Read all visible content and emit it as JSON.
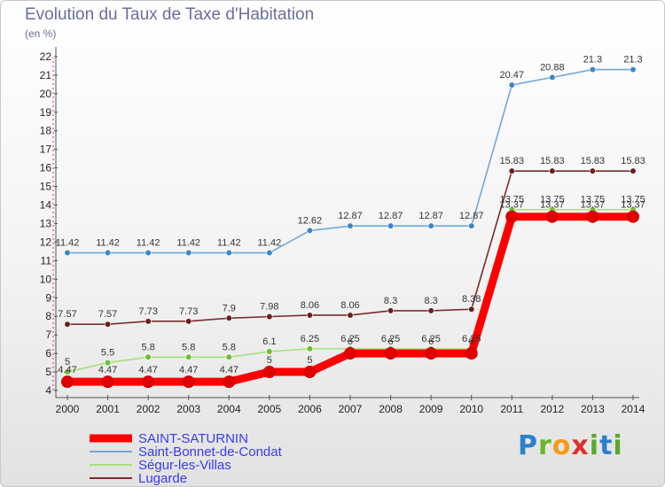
{
  "title": "Evolution du Taux de Taxe d'Habitation",
  "unit": "(en %)",
  "logo_text": "Proxiti",
  "chart_data": {
    "type": "line",
    "title": "Evolution du Taux de Taxe d'Habitation",
    "ylabel": "(en %)",
    "xlabel": "",
    "x": [
      2000,
      2001,
      2002,
      2003,
      2004,
      2005,
      2006,
      2007,
      2008,
      2009,
      2010,
      2011,
      2012,
      2013,
      2014
    ],
    "ylim": [
      4,
      22
    ],
    "yticks": [
      4,
      5,
      6,
      7,
      8,
      9,
      10,
      11,
      12,
      13,
      14,
      15,
      16,
      17,
      18,
      19,
      20,
      21,
      22
    ],
    "grid": false,
    "legend_position": "bottom-left",
    "series": [
      {
        "name": "Saint-Bonnet-de-Condat",
        "color": "#6fa8dc",
        "marker": "#3d85c6",
        "values": [
          11.42,
          11.42,
          11.42,
          11.42,
          11.42,
          11.42,
          12.62,
          12.87,
          12.87,
          12.87,
          12.87,
          20.47,
          20.88,
          21.3,
          21.3
        ],
        "labels": [
          "11.42",
          "11.42",
          "11.42",
          "11.42",
          "11.42",
          "11.42",
          "12.62",
          "12.87",
          "12.87",
          "12.87",
          "12.87",
          "20.47",
          "20.88",
          "21.3",
          "21.3"
        ]
      },
      {
        "name": "Ségur-les-Villas",
        "color": "#a8e07a",
        "marker": "#6abf2e",
        "values": [
          5,
          5.5,
          5.8,
          5.8,
          5.8,
          6.1,
          6.25,
          6.25,
          6.25,
          6.25,
          6.25,
          13.75,
          13.75,
          13.75,
          13.75
        ],
        "labels": [
          "5",
          "5.5",
          "5.8",
          "5.8",
          "5.8",
          "6.1",
          "6.25",
          "6.25",
          "6.25",
          "6.25",
          "6.25",
          "13.75",
          "13.75",
          "13.75",
          "13.75"
        ]
      },
      {
        "name": "Lugarde",
        "color": "#7a2c2c",
        "marker": "#6b1f1f",
        "values": [
          7.57,
          7.57,
          7.73,
          7.73,
          7.9,
          7.98,
          8.06,
          8.06,
          8.3,
          8.3,
          8.38,
          15.83,
          15.83,
          15.83,
          15.83
        ],
        "labels": [
          "7.57",
          "7.57",
          "7.73",
          "7.73",
          "7.9",
          "7.98",
          "8.06",
          "8.06",
          "8.3",
          "8.3",
          "8.38",
          "15.83",
          "15.83",
          "15.83",
          "15.83"
        ]
      },
      {
        "name": "SAINT-SATURNIN",
        "color": "#ff0000",
        "marker": "#e00000",
        "values": [
          4.47,
          4.47,
          4.47,
          4.47,
          4.47,
          5,
          5,
          6,
          6,
          6,
          6,
          13.37,
          13.37,
          13.37,
          13.37
        ],
        "labels": [
          "4.47",
          "4.47",
          "4.47",
          "4.47",
          "4.47",
          "5",
          "5",
          "6",
          "6",
          "6",
          "6",
          "13.37",
          "13.37",
          "13.37",
          "13.37"
        ]
      }
    ],
    "legend": [
      "SAINT-SATURNIN",
      "Saint-Bonnet-de-Condat",
      "Ségur-les-Villas",
      "Lugarde"
    ]
  }
}
